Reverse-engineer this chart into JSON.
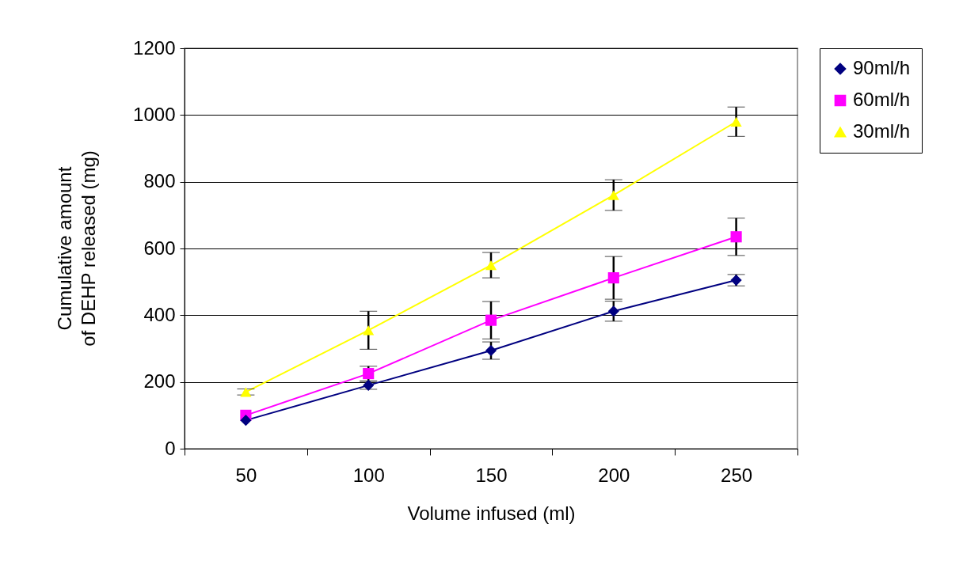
{
  "chart_data": {
    "type": "line",
    "xlabel": "Volume infused (ml)",
    "ylabel": "Cumulative amount of DEHP released (mg)",
    "categories": [
      "50",
      "100",
      "150",
      "200",
      "250"
    ],
    "ylim": [
      0,
      1200
    ],
    "yticks": [
      0,
      200,
      400,
      600,
      800,
      1000,
      1200
    ],
    "grid": "y",
    "legend": "right",
    "series": [
      {
        "name": "90ml/h",
        "color": "#000080",
        "marker": "diamond",
        "values": [
          85,
          190,
          294,
          412,
          505
        ],
        "errors": [
          null,
          12,
          26,
          30,
          17
        ]
      },
      {
        "name": "60ml/h",
        "color": "#ff00ff",
        "marker": "square",
        "values": [
          100,
          225,
          385,
          512,
          635
        ],
        "errors": [
          null,
          22,
          56,
          64,
          56
        ]
      },
      {
        "name": "30ml/h",
        "color": "#ffff00",
        "marker": "triangle",
        "values": [
          170,
          355,
          550,
          760,
          980
        ],
        "errors": [
          9,
          57,
          38,
          46,
          44
        ]
      }
    ]
  }
}
